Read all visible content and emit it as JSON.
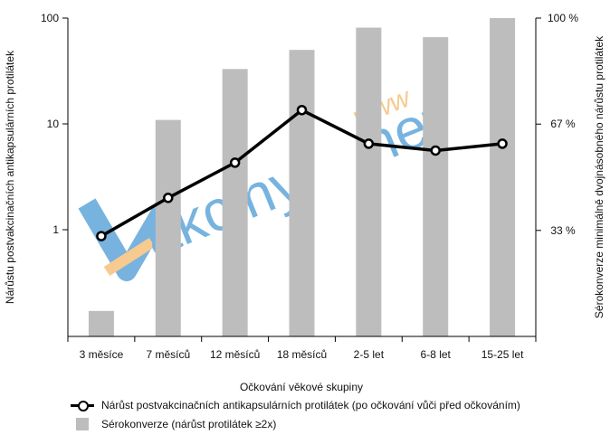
{
  "chart_data": {
    "type": "bar+line",
    "categories": [
      "3 měsíce",
      "7 měsíců",
      "12 měsíců",
      "18 měsíců",
      "2-5 let",
      "6-8 let",
      "15-25 let"
    ],
    "xlabel": "Očkování věkové skupiny",
    "ylabel_left": "Nárůstu postvakcinačních antikapsulárních protilátek",
    "ylabel_right": "Sérokonverze minimálně dvojnásobného nárůstu protilátek",
    "left_axis": {
      "scale": "log",
      "ticks": [
        "1",
        "10",
        "100"
      ]
    },
    "right_axis": {
      "ticks": [
        "33 %",
        "67 %",
        "100 %"
      ]
    },
    "series": [
      {
        "name": "Sérokonverze (nárůst protilátek ≥2x)",
        "type": "bar",
        "axis": "right",
        "unit": "%",
        "values": [
          8,
          68,
          84,
          90,
          97,
          94,
          100
        ],
        "color": "#bdbdbd"
      },
      {
        "name": "Nárůst postvakcinačních antikapsulárních protilátek (po očkování vůči před očkováním)",
        "type": "line",
        "axis": "left",
        "values": [
          0.87,
          2.0,
          4.3,
          13.5,
          6.5,
          5.6,
          6.5
        ],
        "color": "#000000"
      }
    ],
    "grid": false,
    "legend_position": "bottom"
  },
  "watermark": {
    "prefix": "V",
    "main": "akciny",
    "suffix": ".net",
    "www": "www"
  },
  "legend": {
    "line_label": "Nárůst postvakcinačních antikapsulárních protilátek (po očkování vůči před očkováním)",
    "bar_label": "Sérokonverze (nárůst protilátek ≥2x)"
  }
}
